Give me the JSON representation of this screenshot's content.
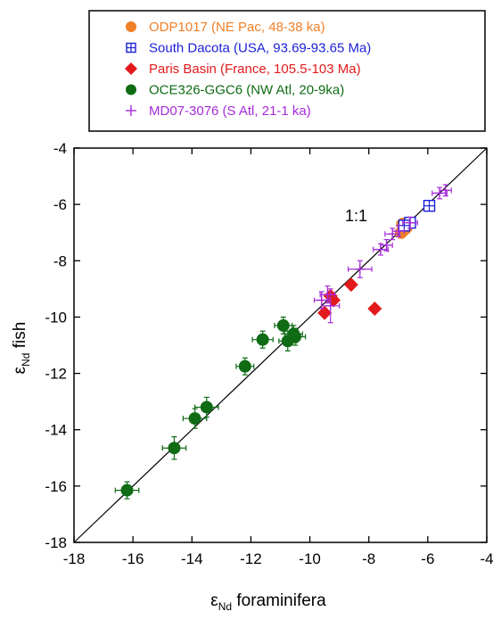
{
  "chart_data": {
    "type": "scatter",
    "xlabel_main": "ε",
    "xlabel_sub": "Nd",
    "xlabel_rest": " foraminifera",
    "ylabel_main": "ε",
    "ylabel_sub": "Nd",
    "ylabel_rest": " fish",
    "xlim": [
      -18,
      -4
    ],
    "ylim": [
      -18,
      -4
    ],
    "xticks": [
      -18,
      -16,
      -14,
      -12,
      -10,
      -8,
      -6,
      -4
    ],
    "yticks": [
      -18,
      -16,
      -14,
      -12,
      -10,
      -8,
      -6,
      -4
    ],
    "xtick_labels": [
      "-18",
      "-16",
      "-14",
      "-12",
      "-10",
      "-8",
      "-6",
      "-4"
    ],
    "ytick_labels": [
      "-18",
      "-16",
      "-14",
      "-12",
      "-10",
      "-8",
      "-6",
      "-4"
    ],
    "annotation": "1:1",
    "reference_line": {
      "from": [
        -18,
        -18
      ],
      "to": [
        -4,
        -4
      ]
    },
    "legend_position": "top, outside plot",
    "series": [
      {
        "name": "ODP1017 (NE Pac, 48-38 ka)",
        "color": "#f07f27",
        "marker": "circle",
        "points": [
          {
            "x": -6.85,
            "y": -6.7,
            "xerr": 0.2,
            "yerr": 0.2
          },
          {
            "x": -6.75,
            "y": -6.85,
            "xerr": 0.2,
            "yerr": 0.2
          },
          {
            "x": -6.9,
            "y": -7.0,
            "xerr": 0.2,
            "yerr": 0.2
          }
        ]
      },
      {
        "name": "South Dacota (USA, 93.69-93.65 Ma)",
        "color": "#1a1fd6",
        "marker": "boxplus",
        "points": [
          {
            "x": -6.6,
            "y": -6.65
          },
          {
            "x": -6.8,
            "y": -6.75
          },
          {
            "x": -5.95,
            "y": -6.05
          }
        ]
      },
      {
        "name": "Paris Basin (France, 105.5-103 Ma)",
        "color": "#e31a1c",
        "marker": "diamond",
        "points": [
          {
            "x": -9.5,
            "y": -9.85
          },
          {
            "x": -9.2,
            "y": -9.4
          },
          {
            "x": -8.6,
            "y": -8.85
          },
          {
            "x": -7.8,
            "y": -9.7
          },
          {
            "x": -9.3,
            "y": -9.25
          }
        ]
      },
      {
        "name": "OCE326-GGC6 (NW Atl, 20-9ka)",
        "color": "#0f6b14",
        "marker": "circle",
        "points": [
          {
            "x": -16.2,
            "y": -16.15,
            "xerr": 0.4,
            "yerr": 0.3
          },
          {
            "x": -14.6,
            "y": -14.65,
            "xerr": 0.4,
            "yerr": 0.4
          },
          {
            "x": -13.9,
            "y": -13.6,
            "xerr": 0.4,
            "yerr": 0.35
          },
          {
            "x": -13.5,
            "y": -13.2,
            "xerr": 0.4,
            "yerr": 0.35
          },
          {
            "x": -12.2,
            "y": -11.75,
            "xerr": 0.3,
            "yerr": 0.3
          },
          {
            "x": -11.6,
            "y": -10.8,
            "xerr": 0.35,
            "yerr": 0.3
          },
          {
            "x": -10.9,
            "y": -10.3,
            "xerr": 0.3,
            "yerr": 0.3
          },
          {
            "x": -10.75,
            "y": -10.85,
            "xerr": 0.3,
            "yerr": 0.35
          },
          {
            "x": -10.5,
            "y": -10.7,
            "xerr": 0.35,
            "yerr": 0.3
          },
          {
            "x": -10.55,
            "y": -10.6,
            "xerr": 0.3,
            "yerr": 0.3
          }
        ]
      },
      {
        "name": "MD07-3076 (S Atl, 21-1 ka)",
        "color": "#a52bd9",
        "marker": "plus",
        "points": [
          {
            "x": -9.6,
            "y": -9.4,
            "xerr": 0.25,
            "yerr": 0.3
          },
          {
            "x": -9.3,
            "y": -9.6,
            "xerr": 0.3,
            "yerr": 0.6
          },
          {
            "x": -9.4,
            "y": -9.2,
            "xerr": 0.25,
            "yerr": 0.3
          },
          {
            "x": -8.3,
            "y": -8.3,
            "xerr": 0.4,
            "yerr": 0.3
          },
          {
            "x": -7.6,
            "y": -7.6,
            "xerr": 0.25,
            "yerr": 0.2
          },
          {
            "x": -7.4,
            "y": -7.45,
            "xerr": 0.2,
            "yerr": 0.2
          },
          {
            "x": -7.2,
            "y": -7.05,
            "xerr": 0.25,
            "yerr": 0.2
          },
          {
            "x": -7.0,
            "y": -6.95,
            "xerr": 0.2,
            "yerr": 0.2
          },
          {
            "x": -6.6,
            "y": -6.65,
            "xerr": 0.25,
            "yerr": 0.2
          },
          {
            "x": -5.6,
            "y": -5.6,
            "xerr": 0.25,
            "yerr": 0.2
          },
          {
            "x": -5.4,
            "y": -5.5,
            "xerr": 0.2,
            "yerr": 0.2
          }
        ]
      }
    ]
  }
}
